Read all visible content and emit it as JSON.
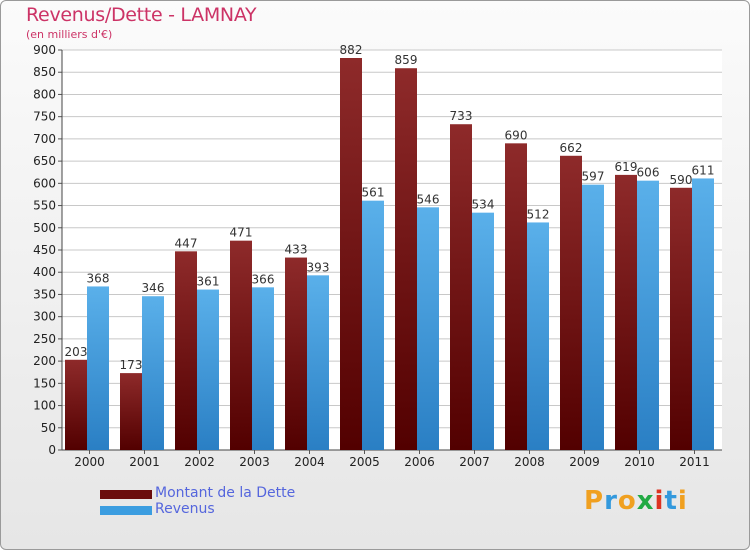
{
  "title": "Revenus/Dette - LAMNAY",
  "subtitle": "(en milliers d'€)",
  "logo": {
    "letters": [
      "P",
      "r",
      "o",
      "x",
      "i",
      "t",
      "i"
    ],
    "colors": [
      "#f0a020",
      "#3399dd",
      "#f0a020",
      "#22aa44",
      "#dd3322",
      "#3399dd",
      "#f0a020"
    ]
  },
  "colors": {
    "dette": "#7a1c1c",
    "revenus": "#3b9de0",
    "grid": "#c8c8c8"
  },
  "chart_data": {
    "type": "bar",
    "categories": [
      "2000",
      "2001",
      "2002",
      "2003",
      "2004",
      "2005",
      "2006",
      "2007",
      "2008",
      "2009",
      "2010",
      "2011"
    ],
    "series": [
      {
        "name": "Montant de la Dette",
        "values": [
          203,
          173,
          447,
          471,
          433,
          882,
          859,
          733,
          690,
          662,
          619,
          590
        ]
      },
      {
        "name": "Revenus",
        "values": [
          368,
          346,
          361,
          366,
          393,
          561,
          546,
          534,
          512,
          597,
          606,
          611
        ]
      }
    ],
    "yticks": [
      0,
      50,
      100,
      150,
      200,
      250,
      300,
      350,
      400,
      450,
      500,
      550,
      600,
      650,
      700,
      750,
      800,
      850,
      900
    ],
    "ylim": [
      0,
      900
    ],
    "grid": true,
    "legend_position": "bottom-left"
  }
}
